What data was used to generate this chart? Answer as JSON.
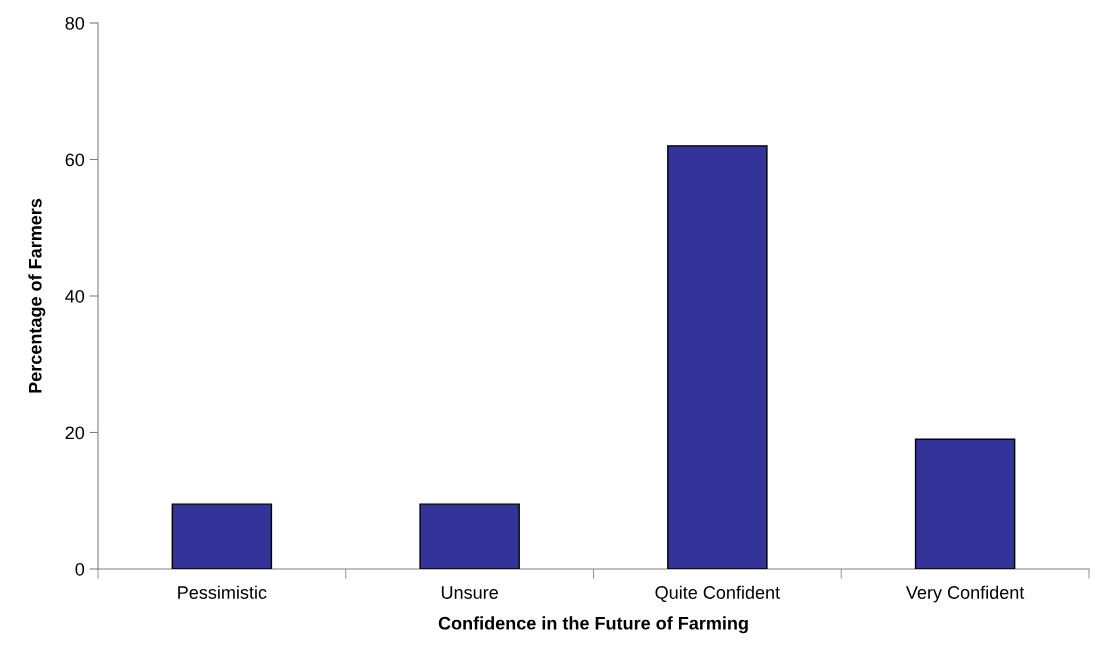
{
  "chart_data": {
    "type": "bar",
    "xlabel": "Confidence in the Future of Farming",
    "ylabel": "Percentage of Farmers",
    "categories": [
      "Pessimistic",
      "Unsure",
      "Quite Confident",
      "Very Confident"
    ],
    "values": [
      9.5,
      9.5,
      62,
      19
    ],
    "color": "#333399",
    "ylim": [
      0,
      80
    ],
    "yticks": [
      0,
      20,
      40,
      60,
      80
    ],
    "grid": false,
    "legend": false
  }
}
